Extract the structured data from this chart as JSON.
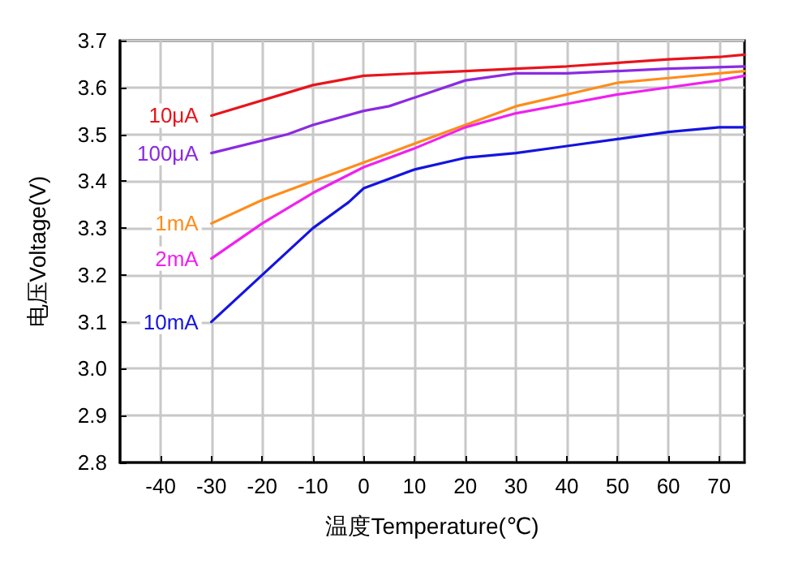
{
  "chart_data": {
    "type": "line",
    "xlabel": "温度Temperature(℃)",
    "ylabel": "电压Voltage(V)",
    "xlim": [
      -48,
      75
    ],
    "xticks": [
      -40,
      -30,
      -20,
      -10,
      0,
      10,
      20,
      30,
      40,
      50,
      60,
      70
    ],
    "ylim": [
      2.8,
      3.7
    ],
    "yticks": [
      2.8,
      2.9,
      {
        "value": 3,
        "label": "3.0"
      },
      3.1,
      3.2,
      3.3,
      3.4,
      3.5,
      3.6,
      3.7
    ],
    "grid": true,
    "legend": false,
    "marker": "none",
    "line_style": "solid",
    "series": [
      {
        "name": "10μA",
        "color": "#e8141c",
        "x": [
          -30,
          -10,
          0,
          20,
          30,
          40,
          60,
          70,
          75
        ],
        "values": [
          3.54,
          3.605,
          3.625,
          3.635,
          3.64,
          3.645,
          3.66,
          3.665,
          3.67
        ]
      },
      {
        "name": "100μA",
        "color": "#8a2be2",
        "x": [
          -30,
          -15,
          -10,
          0,
          5,
          20,
          30,
          40,
          60,
          75
        ],
        "values": [
          3.46,
          3.5,
          3.52,
          3.55,
          3.56,
          3.615,
          3.63,
          3.63,
          3.64,
          3.645
        ]
      },
      {
        "name": "1mA",
        "color": "#ff8c1a",
        "x": [
          -30,
          -20,
          -10,
          0,
          10,
          20,
          30,
          40,
          50,
          60,
          70,
          75
        ],
        "values": [
          3.31,
          3.36,
          3.4,
          3.44,
          3.48,
          3.52,
          3.56,
          3.585,
          3.61,
          3.62,
          3.63,
          3.635
        ]
      },
      {
        "name": "2mA",
        "color": "#f020f0",
        "x": [
          -30,
          -20,
          -10,
          0,
          10,
          20,
          30,
          40,
          50,
          60,
          70,
          75
        ],
        "values": [
          3.235,
          3.31,
          3.375,
          3.43,
          3.47,
          3.515,
          3.545,
          3.565,
          3.585,
          3.6,
          3.615,
          3.625
        ]
      },
      {
        "name": "10mA",
        "color": "#1414e0",
        "x": [
          -30,
          -20,
          -10,
          -3,
          0,
          10,
          20,
          30,
          40,
          50,
          60,
          70,
          75
        ],
        "values": [
          3.1,
          3.2,
          3.3,
          3.355,
          3.385,
          3.425,
          3.45,
          3.46,
          3.475,
          3.49,
          3.505,
          3.515,
          3.515
        ]
      }
    ]
  }
}
